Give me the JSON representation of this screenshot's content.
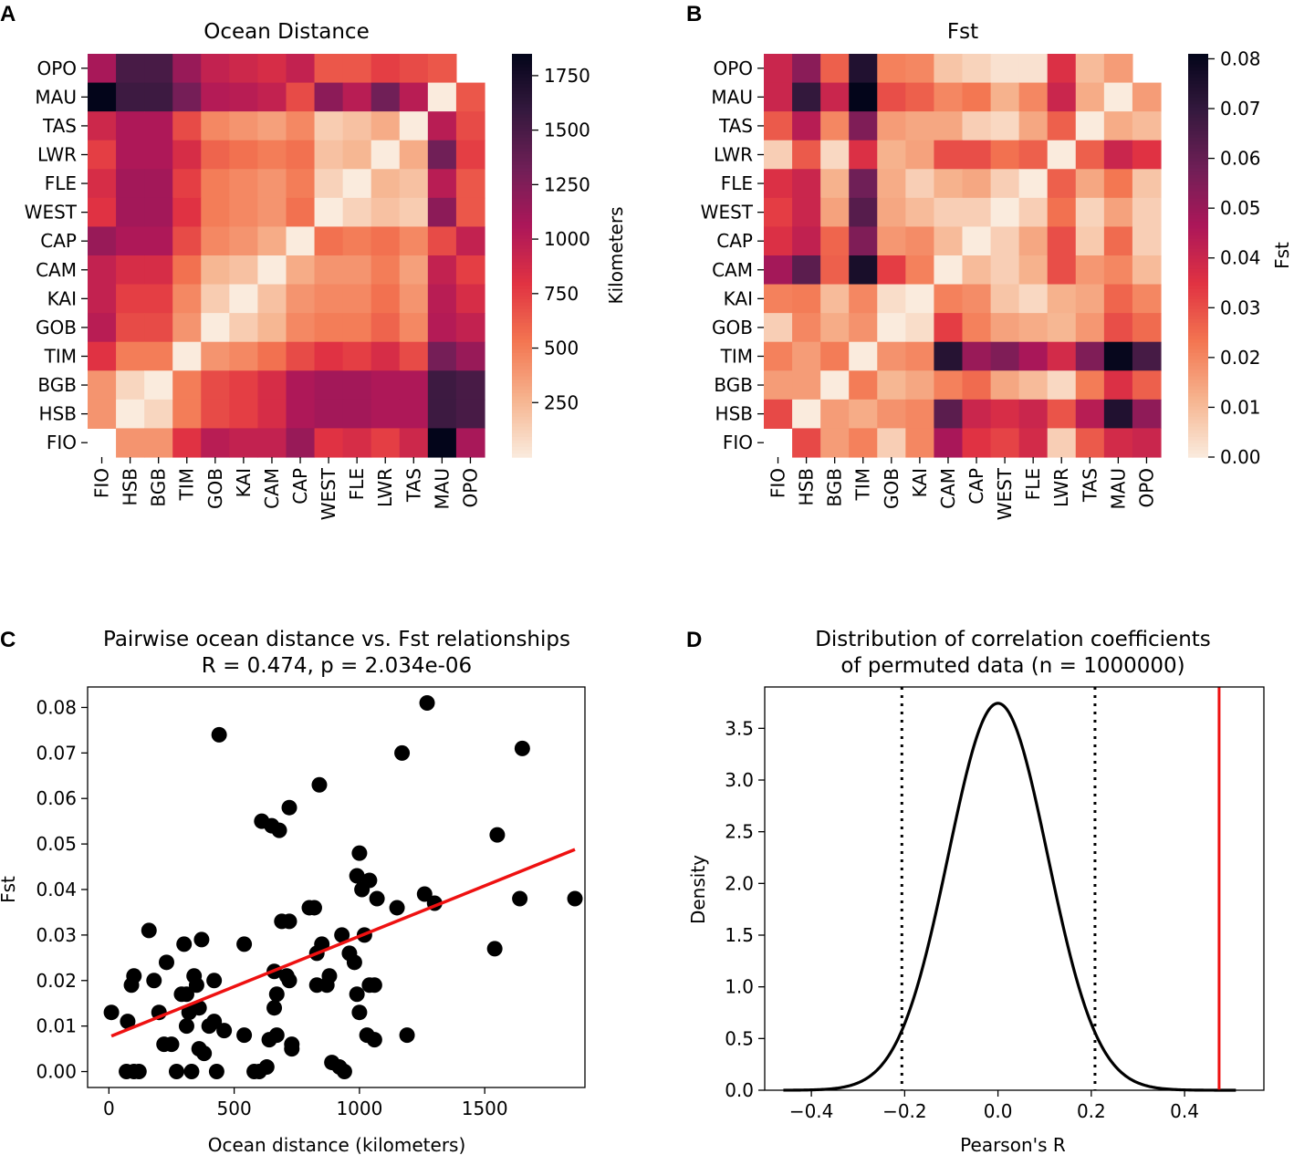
{
  "panels": {
    "A": {
      "letter": "A"
    },
    "B": {
      "letter": "B"
    },
    "C": {
      "letter": "C"
    },
    "D": {
      "letter": "D"
    }
  },
  "chart_data": [
    {
      "id": "A",
      "type": "heatmap",
      "title": "Ocean Distance",
      "rows": [
        "OPO",
        "MAU",
        "TAS",
        "LWR",
        "FLE",
        "WEST",
        "CAP",
        "CAM",
        "KAI",
        "GOB",
        "TIM",
        "BGB",
        "HSB",
        "FIO"
      ],
      "cols": [
        "FIO",
        "HSB",
        "BGB",
        "TIM",
        "GOB",
        "KAI",
        "CAM",
        "CAP",
        "WEST",
        "FLE",
        "LWR",
        "TAS",
        "MAU",
        "OPO"
      ],
      "values": [
        [
          1080,
          1500,
          1500,
          1150,
          950,
          900,
          850,
          950,
          650,
          650,
          750,
          700,
          650,
          null
        ],
        [
          1850,
          1550,
          1550,
          1300,
          1020,
          1000,
          950,
          700,
          1200,
          1000,
          1320,
          1000,
          0,
          650
        ],
        [
          900,
          1050,
          1050,
          700,
          450,
          400,
          350,
          450,
          150,
          200,
          300,
          0,
          1000,
          700
        ],
        [
          750,
          1050,
          1050,
          850,
          600,
          550,
          500,
          550,
          200,
          250,
          0,
          300,
          1320,
          750
        ],
        [
          850,
          1100,
          1100,
          750,
          500,
          450,
          400,
          500,
          120,
          0,
          250,
          200,
          1000,
          650
        ],
        [
          800,
          1100,
          1100,
          800,
          500,
          450,
          400,
          550,
          0,
          120,
          200,
          150,
          1200,
          650
        ],
        [
          1150,
          1050,
          1050,
          700,
          450,
          400,
          300,
          0,
          550,
          500,
          550,
          450,
          700,
          950
        ],
        [
          950,
          850,
          850,
          550,
          250,
          200,
          0,
          300,
          400,
          400,
          500,
          350,
          950,
          750
        ],
        [
          950,
          750,
          750,
          450,
          150,
          0,
          200,
          400,
          450,
          450,
          550,
          400,
          1000,
          850
        ],
        [
          1000,
          700,
          700,
          400,
          0,
          150,
          250,
          450,
          500,
          500,
          600,
          450,
          1020,
          950
        ],
        [
          800,
          500,
          500,
          0,
          400,
          450,
          550,
          700,
          800,
          750,
          850,
          700,
          1300,
          1150
        ],
        [
          400,
          100,
          0,
          500,
          700,
          750,
          850,
          1050,
          1100,
          1100,
          1050,
          1050,
          1550,
          1500
        ],
        [
          400,
          0,
          100,
          500,
          700,
          750,
          850,
          1050,
          1100,
          1100,
          1050,
          1050,
          1550,
          1500
        ],
        [
          null,
          400,
          400,
          800,
          1000,
          950,
          950,
          1150,
          800,
          850,
          750,
          900,
          1850,
          1080
        ]
      ],
      "colorbar": {
        "label": "Kilometers",
        "min": 0,
        "max": 1850,
        "ticks": [
          250,
          500,
          750,
          1000,
          1250,
          1500,
          1750
        ]
      },
      "colors": [
        "#faebdd",
        "#f6b48f",
        "#f37651",
        "#e13342",
        "#ad1759",
        "#701f57",
        "#35193e",
        "#03051a"
      ]
    },
    {
      "id": "B",
      "type": "heatmap",
      "title": "Fst",
      "rows": [
        "OPO",
        "MAU",
        "TAS",
        "LWR",
        "FLE",
        "WEST",
        "CAP",
        "CAM",
        "KAI",
        "GOB",
        "TIM",
        "BGB",
        "HSB",
        "FIO"
      ],
      "cols": [
        "FIO",
        "HSB",
        "BGB",
        "TIM",
        "GOB",
        "KAI",
        "CAM",
        "CAP",
        "WEST",
        "FLE",
        "LWR",
        "TAS",
        "MAU",
        "OPO"
      ],
      "values": [
        [
          0.04,
          0.053,
          0.027,
          0.074,
          0.021,
          0.02,
          0.008,
          0.005,
          0.002,
          0.002,
          0.036,
          0.01,
          0.016,
          null
        ],
        [
          0.04,
          0.07,
          0.04,
          0.081,
          0.03,
          0.027,
          0.02,
          0.023,
          0.012,
          0.02,
          0.04,
          0.013,
          0.0,
          0.016
        ],
        [
          0.028,
          0.044,
          0.02,
          0.055,
          0.016,
          0.014,
          0.014,
          0.006,
          0.004,
          0.014,
          0.027,
          0.0,
          0.013,
          0.01
        ],
        [
          0.006,
          0.028,
          0.004,
          0.036,
          0.012,
          0.015,
          0.03,
          0.03,
          0.024,
          0.027,
          0.0,
          0.027,
          0.04,
          0.035
        ],
        [
          0.036,
          0.04,
          0.012,
          0.058,
          0.013,
          0.006,
          0.012,
          0.014,
          0.006,
          0.0,
          0.027,
          0.014,
          0.023,
          0.008
        ],
        [
          0.033,
          0.04,
          0.015,
          0.063,
          0.014,
          0.01,
          0.006,
          0.006,
          0.0,
          0.006,
          0.024,
          0.005,
          0.015,
          0.006
        ],
        [
          0.036,
          0.042,
          0.026,
          0.055,
          0.017,
          0.019,
          0.01,
          0.0,
          0.006,
          0.014,
          0.03,
          0.007,
          0.025,
          0.006
        ],
        [
          0.048,
          0.062,
          0.027,
          0.076,
          0.033,
          0.021,
          0.0,
          0.01,
          0.006,
          0.012,
          0.03,
          0.017,
          0.02,
          0.01
        ],
        [
          0.021,
          0.022,
          0.01,
          0.02,
          0.003,
          0.0,
          0.021,
          0.019,
          0.008,
          0.004,
          0.012,
          0.014,
          0.026,
          0.02
        ],
        [
          0.006,
          0.02,
          0.013,
          0.018,
          0.0,
          0.003,
          0.033,
          0.021,
          0.015,
          0.013,
          0.011,
          0.017,
          0.03,
          0.025
        ],
        [
          0.021,
          0.016,
          0.022,
          0.0,
          0.018,
          0.02,
          0.073,
          0.05,
          0.055,
          0.047,
          0.038,
          0.055,
          0.08,
          0.066
        ],
        [
          0.016,
          0.016,
          0.0,
          0.022,
          0.011,
          0.014,
          0.021,
          0.025,
          0.014,
          0.01,
          0.004,
          0.022,
          0.036,
          0.027
        ],
        [
          0.031,
          0.0,
          0.016,
          0.013,
          0.018,
          0.02,
          0.062,
          0.04,
          0.037,
          0.04,
          0.029,
          0.044,
          0.074,
          0.052
        ],
        [
          null,
          0.031,
          0.016,
          0.021,
          0.006,
          0.02,
          0.047,
          0.035,
          0.032,
          0.038,
          0.006,
          0.028,
          0.038,
          0.04
        ]
      ],
      "colorbar": {
        "label": "Fst",
        "min": 0,
        "max": 0.081,
        "ticks": [
          "0.00",
          "0.01",
          "0.02",
          "0.03",
          "0.04",
          "0.05",
          "0.06",
          "0.07",
          "0.08"
        ]
      },
      "colors": [
        "#faebdd",
        "#f6b48f",
        "#f37651",
        "#e13342",
        "#ad1759",
        "#701f57",
        "#35193e",
        "#03051a"
      ]
    },
    {
      "id": "C",
      "type": "scatter",
      "title": "Pairwise ocean distance vs. Fst relationships",
      "subtitle": "R = 0.474, p = 2.034e-06",
      "xlabel": "Ocean distance (kilometers)",
      "ylabel": "Fst",
      "xlim": [
        -85,
        1900
      ],
      "ylim": [
        -0.0035,
        0.0845
      ],
      "xticks": [
        "0",
        "500",
        "1000",
        "1500"
      ],
      "yticks": [
        "0.00",
        "0.01",
        "0.02",
        "0.03",
        "0.04",
        "0.05",
        "0.06",
        "0.07",
        "0.08"
      ],
      "points": [
        [
          10,
          0.013
        ],
        [
          70,
          0.0
        ],
        [
          75,
          0.011
        ],
        [
          90,
          0.019
        ],
        [
          100,
          0.021
        ],
        [
          100,
          0.0
        ],
        [
          120,
          0.0
        ],
        [
          160,
          0.031
        ],
        [
          180,
          0.02
        ],
        [
          200,
          0.013
        ],
        [
          220,
          0.006
        ],
        [
          230,
          0.024
        ],
        [
          250,
          0.006
        ],
        [
          270,
          0.0
        ],
        [
          290,
          0.017
        ],
        [
          300,
          0.028
        ],
        [
          310,
          0.017
        ],
        [
          310,
          0.01
        ],
        [
          320,
          0.013
        ],
        [
          330,
          0.0
        ],
        [
          340,
          0.021
        ],
        [
          350,
          0.019
        ],
        [
          360,
          0.005
        ],
        [
          360,
          0.014
        ],
        [
          370,
          0.029
        ],
        [
          380,
          0.004
        ],
        [
          400,
          0.01
        ],
        [
          420,
          0.02
        ],
        [
          420,
          0.011
        ],
        [
          430,
          0.0
        ],
        [
          440,
          0.074
        ],
        [
          460,
          0.009
        ],
        [
          540,
          0.028
        ],
        [
          540,
          0.008
        ],
        [
          580,
          0.0
        ],
        [
          600,
          0.0
        ],
        [
          610,
          0.055
        ],
        [
          630,
          0.001
        ],
        [
          640,
          0.007
        ],
        [
          650,
          0.054
        ],
        [
          660,
          0.014
        ],
        [
          660,
          0.022
        ],
        [
          670,
          0.017
        ],
        [
          670,
          0.008
        ],
        [
          680,
          0.053
        ],
        [
          690,
          0.033
        ],
        [
          710,
          0.021
        ],
        [
          720,
          0.058
        ],
        [
          720,
          0.033
        ],
        [
          720,
          0.02
        ],
        [
          730,
          0.006
        ],
        [
          730,
          0.005
        ],
        [
          800,
          0.036
        ],
        [
          820,
          0.036
        ],
        [
          830,
          0.026
        ],
        [
          830,
          0.019
        ],
        [
          840,
          0.063
        ],
        [
          850,
          0.028
        ],
        [
          870,
          0.019
        ],
        [
          880,
          0.021
        ],
        [
          890,
          0.002
        ],
        [
          920,
          0.001
        ],
        [
          930,
          0.03
        ],
        [
          940,
          0.0
        ],
        [
          960,
          0.026
        ],
        [
          980,
          0.024
        ],
        [
          990,
          0.043
        ],
        [
          990,
          0.017
        ],
        [
          1000,
          0.048
        ],
        [
          1000,
          0.013
        ],
        [
          1010,
          0.04
        ],
        [
          1020,
          0.03
        ],
        [
          1030,
          0.008
        ],
        [
          1040,
          0.042
        ],
        [
          1040,
          0.019
        ],
        [
          1060,
          0.007
        ],
        [
          1060,
          0.019
        ],
        [
          1070,
          0.038
        ],
        [
          1150,
          0.036
        ],
        [
          1170,
          0.07
        ],
        [
          1190,
          0.008
        ],
        [
          1260,
          0.039
        ],
        [
          1270,
          0.081
        ],
        [
          1300,
          0.037
        ],
        [
          1540,
          0.027
        ],
        [
          1550,
          0.052
        ],
        [
          1640,
          0.038
        ],
        [
          1650,
          0.071
        ],
        [
          1860,
          0.038
        ]
      ],
      "fit_line": {
        "x": [
          10,
          1860
        ],
        "y": [
          0.0078,
          0.0488
        ],
        "color": "#ee1111"
      }
    },
    {
      "id": "D",
      "type": "line",
      "title": "Distribution of correlation coefficients",
      "subtitle": "of permuted data (n = 1000000)",
      "xlabel": "Pearson's R",
      "ylabel": "Density",
      "xlim": [
        -0.5,
        0.57
      ],
      "ylim": [
        0,
        3.9
      ],
      "xticks": [
        "−0.4",
        "−0.2",
        "0.0",
        "0.2",
        "0.4"
      ],
      "yticks": [
        "0.0",
        "0.5",
        "1.0",
        "1.5",
        "2.0",
        "2.5",
        "3.0",
        "3.5"
      ],
      "density": {
        "sigma": 0.1066,
        "x_range": [
          -0.46,
          0.51
        ]
      },
      "vlines_dotted": [
        -0.206,
        0.208
      ],
      "observed_R": 0.474,
      "observed_color": "#ee1111"
    }
  ]
}
